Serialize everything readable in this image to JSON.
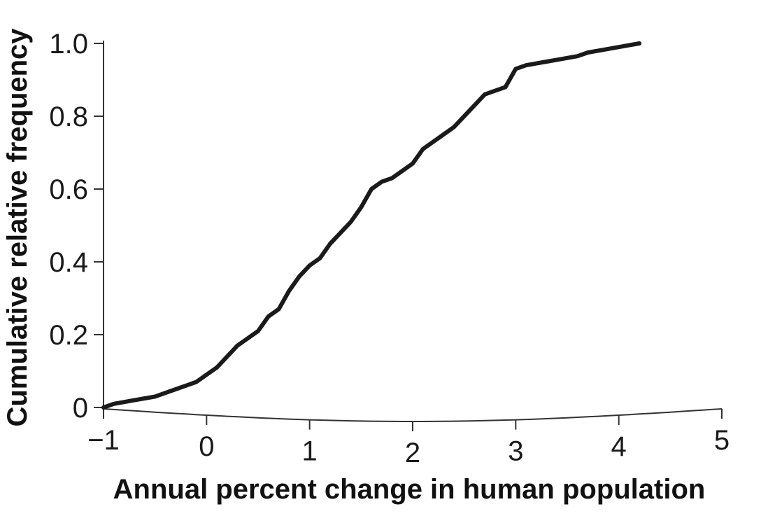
{
  "chart_data": {
    "type": "line",
    "title": "",
    "xlabel": "Annual percent change in human population",
    "ylabel": "Cumulative relative frequency",
    "xlim": [
      -1,
      5
    ],
    "ylim": [
      0,
      1.0
    ],
    "x_ticks": [
      -1,
      0,
      1,
      2,
      3,
      4,
      5
    ],
    "x_tick_labels": [
      "−1",
      "0",
      "1",
      "2",
      "3",
      "4",
      "5"
    ],
    "y_ticks": [
      0,
      0.2,
      0.4,
      0.6,
      0.8,
      1.0
    ],
    "y_tick_labels": [
      "0",
      "0.2",
      "0.4",
      "0.6",
      "0.8",
      "1.0"
    ],
    "grid": false,
    "line_color": "#1a1a1a",
    "series": [
      {
        "x": [
          -1.0,
          -0.9,
          -0.8,
          -0.7,
          -0.6,
          -0.5,
          -0.4,
          -0.3,
          -0.2,
          -0.1,
          0.0,
          0.1,
          0.2,
          0.3,
          0.4,
          0.5,
          0.6,
          0.7,
          0.8,
          0.9,
          1.0,
          1.1,
          1.2,
          1.3,
          1.4,
          1.5,
          1.6,
          1.7,
          1.8,
          1.9,
          2.0,
          2.1,
          2.2,
          2.3,
          2.4,
          2.5,
          2.6,
          2.7,
          2.8,
          2.9,
          3.0,
          3.1,
          3.2,
          3.3,
          3.4,
          3.5,
          3.6,
          3.7,
          3.8,
          3.9,
          4.0,
          4.1,
          4.2
        ],
        "y": [
          0.0,
          0.01,
          0.015,
          0.02,
          0.025,
          0.03,
          0.04,
          0.05,
          0.06,
          0.07,
          0.09,
          0.11,
          0.14,
          0.17,
          0.19,
          0.21,
          0.25,
          0.27,
          0.32,
          0.36,
          0.39,
          0.41,
          0.45,
          0.48,
          0.51,
          0.55,
          0.6,
          0.62,
          0.63,
          0.65,
          0.67,
          0.71,
          0.73,
          0.75,
          0.77,
          0.8,
          0.83,
          0.86,
          0.87,
          0.88,
          0.93,
          0.94,
          0.945,
          0.95,
          0.955,
          0.96,
          0.965,
          0.975,
          0.98,
          0.985,
          0.99,
          0.995,
          1.0
        ]
      }
    ]
  }
}
